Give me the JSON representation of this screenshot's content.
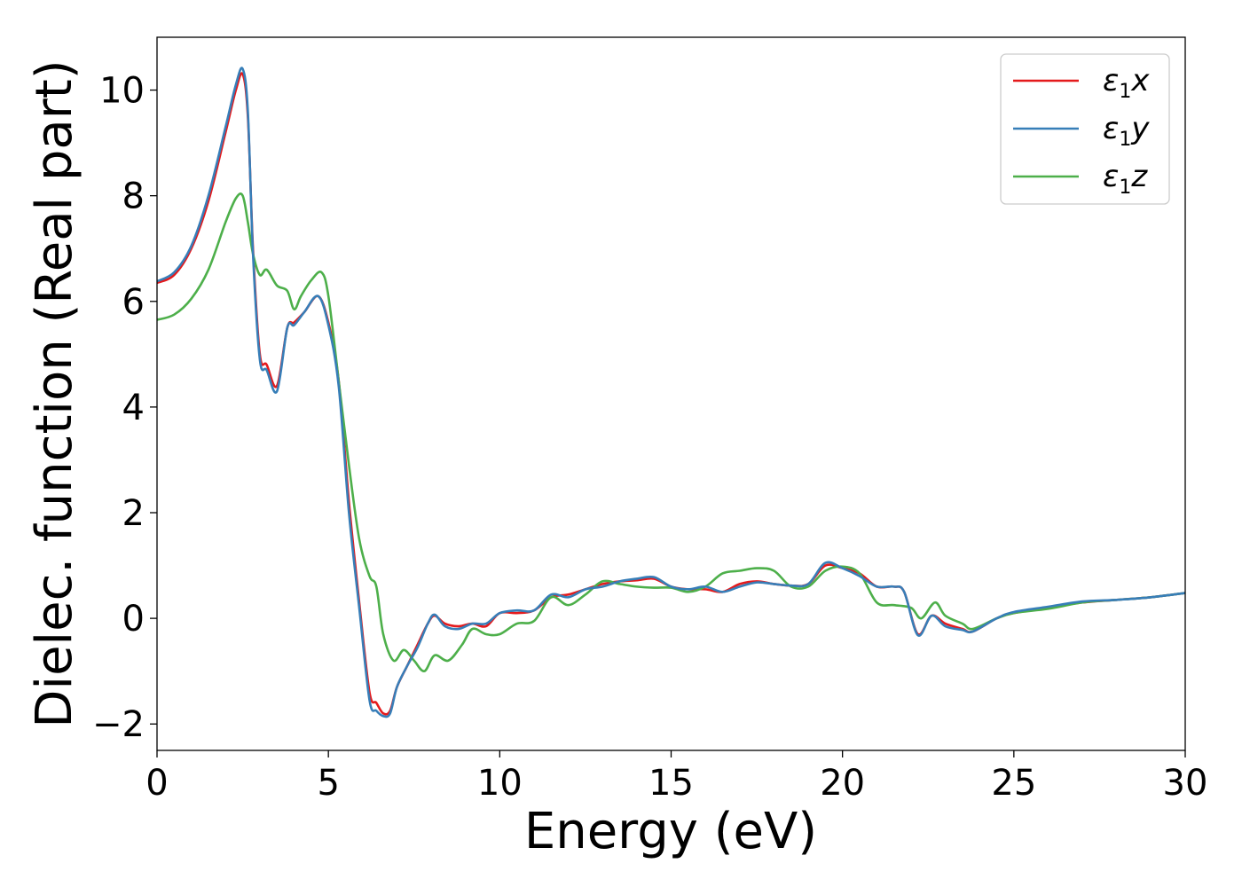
{
  "chart_data": {
    "type": "line",
    "title": "",
    "xlabel": "Energy (eV)",
    "ylabel": "Dielec. function (Real part)",
    "xlim": [
      0,
      30
    ],
    "ylim": [
      -2.5,
      11
    ],
    "xticks": [
      0,
      5,
      10,
      15,
      20,
      25,
      30
    ],
    "xtick_labels": [
      "0",
      "5",
      "10",
      "15",
      "20",
      "25",
      "30"
    ],
    "yticks": [
      -2,
      0,
      2,
      4,
      6,
      8,
      10
    ],
    "ytick_labels": [
      "−2",
      "0",
      "2",
      "4",
      "6",
      "8",
      "10"
    ],
    "grid": false,
    "legend_position": "top-right",
    "series": [
      {
        "name": "ε1x",
        "label_main": "ε",
        "label_sub": "1",
        "label_tail": "x",
        "color": "#e41a1c",
        "x": [
          0,
          0.5,
          1.0,
          1.5,
          2.0,
          2.3,
          2.5,
          2.65,
          2.8,
          3.0,
          3.2,
          3.5,
          3.8,
          4.0,
          4.3,
          4.7,
          5.0,
          5.3,
          5.6,
          5.9,
          6.2,
          6.4,
          6.6,
          6.8,
          7.0,
          7.3,
          7.6,
          7.9,
          8.1,
          8.4,
          8.8,
          9.2,
          9.6,
          10.0,
          10.5,
          11.0,
          11.5,
          12.0,
          12.5,
          13.0,
          13.5,
          14.0,
          14.5,
          15.0,
          15.5,
          16.0,
          16.5,
          17.0,
          17.5,
          18.0,
          18.5,
          19.0,
          19.5,
          20.0,
          20.5,
          21.0,
          21.5,
          21.8,
          22.2,
          22.6,
          23.0,
          23.5,
          23.8,
          24.5,
          25.0,
          26.0,
          27.0,
          28.0,
          29.0,
          30.0
        ],
        "y": [
          6.35,
          6.5,
          7.0,
          7.9,
          9.2,
          10.0,
          10.3,
          9.5,
          7.0,
          5.0,
          4.8,
          4.4,
          5.5,
          5.6,
          5.8,
          6.1,
          5.6,
          4.5,
          2.2,
          0.3,
          -1.4,
          -1.6,
          -1.8,
          -1.75,
          -1.3,
          -0.9,
          -0.5,
          -0.1,
          0.05,
          -0.1,
          -0.15,
          -0.1,
          -0.15,
          0.1,
          0.1,
          0.15,
          0.4,
          0.45,
          0.55,
          0.65,
          0.7,
          0.72,
          0.75,
          0.6,
          0.55,
          0.55,
          0.5,
          0.65,
          0.7,
          0.65,
          0.62,
          0.65,
          1.0,
          0.95,
          0.85,
          0.6,
          0.6,
          0.5,
          -0.3,
          0.05,
          -0.1,
          -0.2,
          -0.25,
          0.0,
          0.1,
          0.2,
          0.3,
          0.35,
          0.4,
          0.48
        ]
      },
      {
        "name": "ε1y",
        "label_main": "ε",
        "label_sub": "1",
        "label_tail": "y",
        "color": "#377eb8",
        "x": [
          0,
          0.5,
          1.0,
          1.5,
          2.0,
          2.3,
          2.5,
          2.65,
          2.8,
          3.0,
          3.2,
          3.5,
          3.8,
          4.0,
          4.3,
          4.7,
          5.0,
          5.3,
          5.6,
          5.9,
          6.2,
          6.4,
          6.6,
          6.8,
          7.0,
          7.3,
          7.6,
          7.9,
          8.1,
          8.4,
          8.8,
          9.2,
          9.6,
          10.0,
          10.5,
          11.0,
          11.5,
          12.0,
          12.5,
          13.0,
          13.5,
          14.0,
          14.5,
          15.0,
          15.5,
          16.0,
          16.5,
          17.0,
          17.5,
          18.0,
          18.5,
          19.0,
          19.5,
          20.0,
          20.5,
          21.0,
          21.5,
          21.8,
          22.2,
          22.6,
          23.0,
          23.5,
          23.8,
          24.5,
          25.0,
          26.0,
          27.0,
          28.0,
          29.0,
          30.0
        ],
        "y": [
          6.38,
          6.55,
          7.05,
          8.0,
          9.3,
          10.1,
          10.4,
          9.6,
          6.9,
          4.9,
          4.7,
          4.3,
          5.5,
          5.55,
          5.8,
          6.1,
          5.55,
          4.4,
          2.0,
          0.2,
          -1.55,
          -1.75,
          -1.85,
          -1.8,
          -1.3,
          -0.9,
          -0.55,
          -0.1,
          0.07,
          -0.15,
          -0.2,
          -0.1,
          -0.1,
          0.1,
          0.15,
          0.15,
          0.45,
          0.4,
          0.55,
          0.6,
          0.7,
          0.75,
          0.78,
          0.6,
          0.55,
          0.6,
          0.5,
          0.6,
          0.68,
          0.65,
          0.62,
          0.65,
          1.05,
          0.95,
          0.8,
          0.6,
          0.6,
          0.5,
          -0.32,
          0.05,
          -0.15,
          -0.22,
          -0.25,
          0.0,
          0.12,
          0.22,
          0.32,
          0.35,
          0.4,
          0.48
        ]
      },
      {
        "name": "ε1z",
        "label_main": "ε",
        "label_sub": "1",
        "label_tail": "z",
        "color": "#4daf4a",
        "x": [
          0,
          0.5,
          1.0,
          1.5,
          2.0,
          2.3,
          2.5,
          2.65,
          2.8,
          3.0,
          3.2,
          3.5,
          3.8,
          4.0,
          4.2,
          4.5,
          4.8,
          5.0,
          5.3,
          5.6,
          5.9,
          6.2,
          6.4,
          6.6,
          6.9,
          7.2,
          7.5,
          7.8,
          8.1,
          8.5,
          8.9,
          9.2,
          9.6,
          10.0,
          10.5,
          11.0,
          11.5,
          12.0,
          12.5,
          13.0,
          13.5,
          14.0,
          14.5,
          15.0,
          15.5,
          16.0,
          16.5,
          17.0,
          17.5,
          18.0,
          18.5,
          19.0,
          19.5,
          20.0,
          20.5,
          21.0,
          21.5,
          22.0,
          22.3,
          22.7,
          23.0,
          23.5,
          23.8,
          24.5,
          25.0,
          26.0,
          27.0,
          28.0,
          29.0,
          30.0
        ],
        "y": [
          5.65,
          5.75,
          6.05,
          6.6,
          7.5,
          7.95,
          8.0,
          7.5,
          6.9,
          6.5,
          6.6,
          6.3,
          6.2,
          5.85,
          6.1,
          6.4,
          6.55,
          6.1,
          4.5,
          2.9,
          1.5,
          0.8,
          0.6,
          -0.3,
          -0.8,
          -0.6,
          -0.8,
          -1.0,
          -0.7,
          -0.8,
          -0.5,
          -0.2,
          -0.3,
          -0.3,
          -0.1,
          -0.05,
          0.4,
          0.25,
          0.45,
          0.7,
          0.65,
          0.6,
          0.58,
          0.58,
          0.5,
          0.6,
          0.85,
          0.9,
          0.95,
          0.9,
          0.6,
          0.6,
          0.9,
          0.98,
          0.85,
          0.3,
          0.25,
          0.2,
          0.0,
          0.3,
          0.05,
          -0.1,
          -0.2,
          0.0,
          0.1,
          0.18,
          0.3,
          0.35,
          0.4,
          0.48
        ]
      }
    ]
  }
}
